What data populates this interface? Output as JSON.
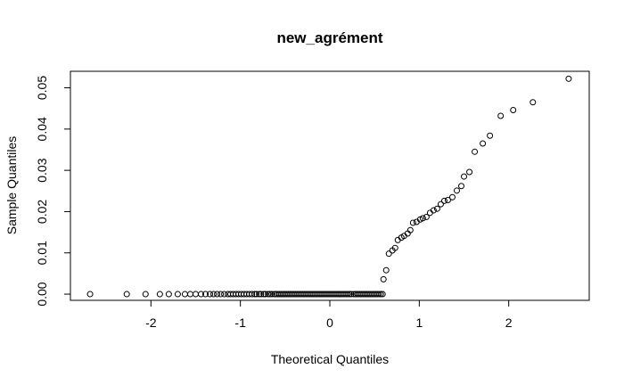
{
  "chart_data": {
    "type": "scatter",
    "title": "new_agrément",
    "xlabel": "Theoretical Quantiles",
    "ylabel": "Sample Quantiles",
    "xlim": [
      -2.9,
      2.9
    ],
    "ylim": [
      -0.0015,
      0.054
    ],
    "xticks": [
      -2,
      -1,
      0,
      1,
      2
    ],
    "xtick_labels": [
      "-2",
      "-1",
      "0",
      "1",
      "2"
    ],
    "yticks": [
      0.0,
      0.01,
      0.02,
      0.03,
      0.04,
      0.05
    ],
    "ytick_labels": [
      "0.00",
      "0.01",
      "0.02",
      "0.03",
      "0.04",
      "0.05"
    ],
    "grid": false,
    "legend": "none",
    "point_marker": "open-circle",
    "zero_x": [
      -2.68,
      -2.27,
      -2.06,
      -1.9,
      -1.8,
      -1.7,
      -1.62,
      -1.56,
      -1.5,
      -1.44,
      -1.39,
      -1.34,
      -1.3,
      -1.26,
      -1.22,
      -1.18,
      -1.14,
      -1.11,
      -1.08,
      -1.05,
      -1.02,
      -0.99,
      -0.96,
      -0.93,
      -0.9,
      -0.87,
      -0.84,
      -0.82,
      -0.79,
      -0.77,
      -0.74,
      -0.72,
      -0.69,
      -0.67,
      -0.65,
      -0.62,
      -0.6,
      -0.58,
      -0.56,
      -0.54,
      -0.52,
      -0.5,
      -0.48,
      -0.46,
      -0.44,
      -0.42,
      -0.4,
      -0.38,
      -0.36,
      -0.34,
      -0.32,
      -0.3,
      -0.28,
      -0.26,
      -0.24,
      -0.22,
      -0.2,
      -0.18,
      -0.16,
      -0.14,
      -0.12,
      -0.1,
      -0.08,
      -0.06,
      -0.04,
      -0.02,
      0.0,
      0.02,
      0.04,
      0.06,
      0.08,
      0.1,
      0.12,
      0.14,
      0.16,
      0.18,
      0.2,
      0.22,
      0.24,
      0.27,
      0.29,
      0.31,
      0.33,
      0.35,
      0.37,
      0.39,
      0.41,
      0.43,
      0.45,
      0.47,
      0.49,
      0.51,
      0.53,
      0.55,
      0.57,
      0.59
    ],
    "points": [
      [
        0.6,
        0.0036
      ],
      [
        0.63,
        0.0058
      ],
      [
        0.66,
        0.0098
      ],
      [
        0.7,
        0.0106
      ],
      [
        0.73,
        0.0112
      ],
      [
        0.76,
        0.0131
      ],
      [
        0.8,
        0.0137
      ],
      [
        0.83,
        0.0141
      ],
      [
        0.87,
        0.0147
      ],
      [
        0.9,
        0.0155
      ],
      [
        0.93,
        0.0173
      ],
      [
        0.97,
        0.0175
      ],
      [
        1.01,
        0.0181
      ],
      [
        1.04,
        0.0184
      ],
      [
        1.08,
        0.0187
      ],
      [
        1.12,
        0.0197
      ],
      [
        1.16,
        0.0203
      ],
      [
        1.2,
        0.0207
      ],
      [
        1.24,
        0.0218
      ],
      [
        1.28,
        0.0226
      ],
      [
        1.32,
        0.0228
      ],
      [
        1.37,
        0.0235
      ],
      [
        1.42,
        0.0251
      ],
      [
        1.47,
        0.0262
      ],
      [
        1.5,
        0.0285
      ],
      [
        1.56,
        0.0296
      ],
      [
        1.62,
        0.0345
      ],
      [
        1.71,
        0.0365
      ],
      [
        1.79,
        0.0384
      ],
      [
        1.91,
        0.0432
      ],
      [
        2.05,
        0.0446
      ],
      [
        2.27,
        0.0465
      ],
      [
        2.67,
        0.0522
      ]
    ]
  }
}
